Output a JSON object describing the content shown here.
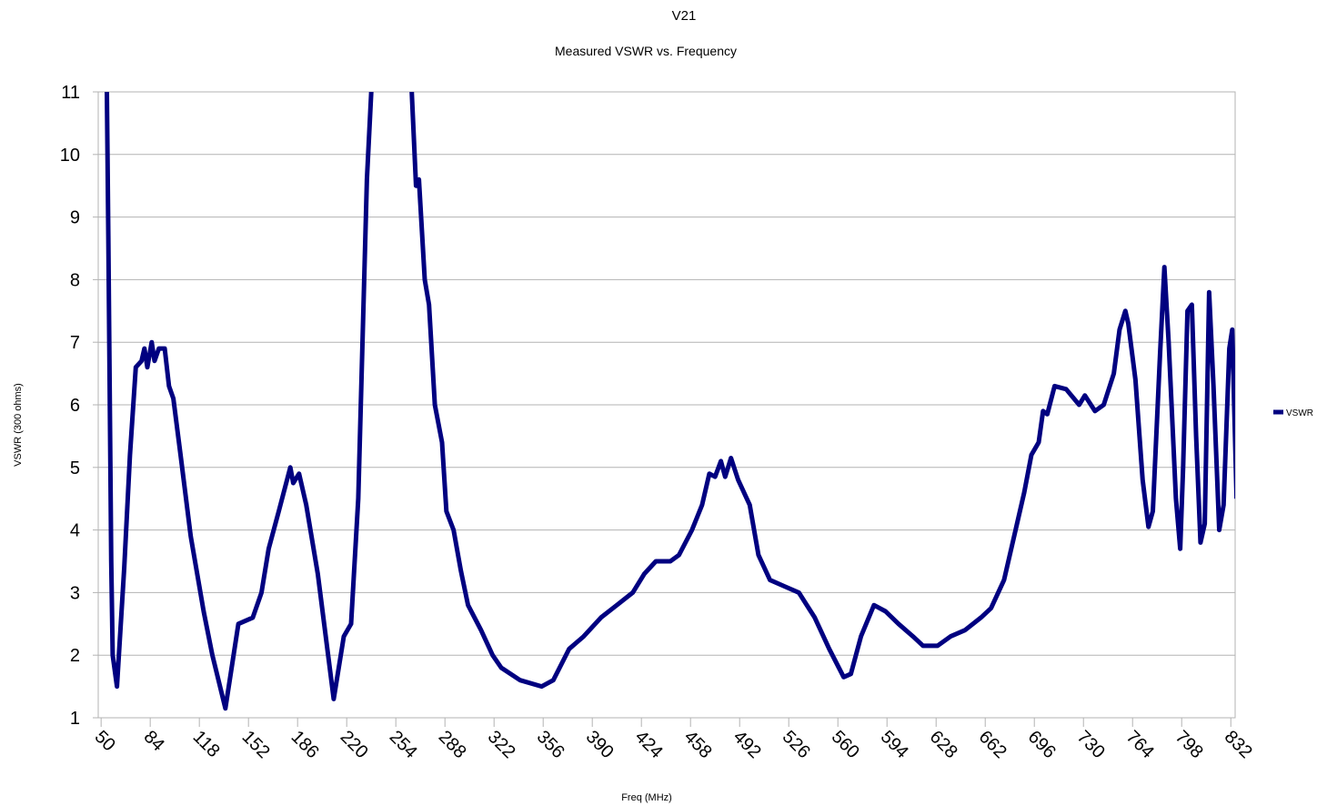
{
  "chart_data": {
    "type": "line",
    "title": "V21",
    "subtitle": "Measured VSWR vs. Frequency",
    "x_label": "Freq (MHz)",
    "y_label": "VSWR (300 ohms)",
    "xlim": [
      48,
      835
    ],
    "ylim": [
      1,
      11
    ],
    "xticks": [
      50,
      84,
      118,
      152,
      186,
      220,
      254,
      288,
      322,
      356,
      390,
      424,
      458,
      492,
      526,
      560,
      594,
      628,
      662,
      696,
      730,
      764,
      798,
      832
    ],
    "yticks": [
      1,
      2,
      3,
      4,
      5,
      6,
      7,
      8,
      9,
      10,
      11
    ],
    "grid": true,
    "legend": "right",
    "x": [
      54,
      55,
      57,
      58,
      61,
      66,
      70,
      74,
      78,
      80,
      82,
      85,
      87,
      90,
      94,
      97,
      100,
      105,
      112,
      121,
      127,
      136,
      145,
      155,
      161,
      166,
      173,
      181,
      183,
      187,
      192,
      200,
      211,
      218,
      223,
      228,
      234,
      237,
      251,
      265,
      268,
      270,
      274,
      277,
      281,
      286,
      289,
      294,
      299,
      304,
      313,
      321,
      327,
      340,
      355,
      363,
      374,
      384,
      396,
      407,
      418,
      426,
      434,
      444,
      450,
      459,
      466,
      471,
      475,
      479,
      482,
      486,
      491,
      499,
      505,
      513,
      523,
      533,
      544,
      554,
      564,
      569,
      576,
      585,
      593,
      602,
      612,
      619,
      629,
      638,
      648,
      659,
      666,
      675,
      683,
      689,
      694,
      699,
      702,
      705,
      710,
      718,
      727,
      731,
      738,
      744,
      751,
      755,
      759,
      761,
      766,
      771,
      775,
      778,
      783,
      786,
      789,
      794,
      797,
      799,
      802,
      805,
      808,
      811,
      814,
      817,
      820,
      824,
      827,
      831,
      833,
      836
    ],
    "series": [
      {
        "name": "VSWR",
        "color": "#000080",
        "values": [
          11,
          8.7,
          3.5,
          2.0,
          1.5,
          3.4,
          5.2,
          6.6,
          6.7,
          6.9,
          6.6,
          7.0,
          6.7,
          6.9,
          6.9,
          6.3,
          6.1,
          5.2,
          3.9,
          2.7,
          2.0,
          1.15,
          2.5,
          2.6,
          3.0,
          3.7,
          4.3,
          5.0,
          4.75,
          4.9,
          4.4,
          3.3,
          1.3,
          2.3,
          2.5,
          4.5,
          9.6,
          11,
          null,
          11,
          9.5,
          9.6,
          8.0,
          7.6,
          6.0,
          5.4,
          4.3,
          4.0,
          3.35,
          2.8,
          2.4,
          2.0,
          1.8,
          1.6,
          1.5,
          1.6,
          2.1,
          2.3,
          2.6,
          2.8,
          3.0,
          3.3,
          3.5,
          3.5,
          3.6,
          4.0,
          4.4,
          4.9,
          4.85,
          5.1,
          4.85,
          5.15,
          4.8,
          4.4,
          3.6,
          3.2,
          3.1,
          3.0,
          2.6,
          2.1,
          1.65,
          1.7,
          2.3,
          2.8,
          2.7,
          2.5,
          2.3,
          2.15,
          2.15,
          2.3,
          2.4,
          2.6,
          2.75,
          3.2,
          4.0,
          4.6,
          5.2,
          5.4,
          5.9,
          5.85,
          6.3,
          6.25,
          6.0,
          6.15,
          5.9,
          6.0,
          6.5,
          7.2,
          7.5,
          7.3,
          6.4,
          4.8,
          4.05,
          4.3,
          6.8,
          8.2,
          7.0,
          4.5,
          3.7,
          5.0,
          7.5,
          7.6,
          5.5,
          3.8,
          4.1,
          7.8,
          6.3,
          4.0,
          4.4,
          6.9,
          7.2,
          4.5
        ]
      }
    ]
  }
}
